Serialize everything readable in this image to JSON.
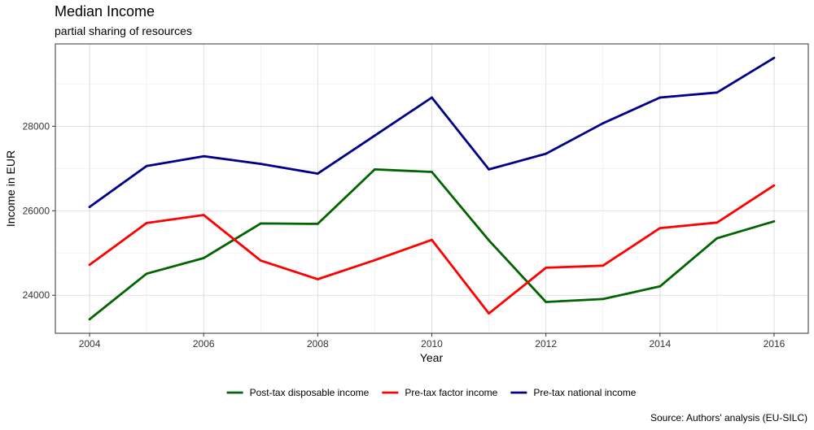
{
  "chart_data": {
    "type": "line",
    "title": "Median Income",
    "subtitle": "partial sharing of resources",
    "xlabel": "Year",
    "ylabel": "Income in EUR",
    "caption": "Source: Authors' analysis (EU-SILC)",
    "xlim": [
      2003.4,
      2016.6
    ],
    "ylim": [
      23100,
      29950
    ],
    "x_ticks": [
      2004,
      2006,
      2008,
      2010,
      2012,
      2014,
      2016
    ],
    "y_ticks": [
      24000,
      26000,
      28000
    ],
    "grid": true,
    "legend_position": "bottom",
    "x": [
      2004,
      2005,
      2006,
      2007,
      2008,
      2009,
      2010,
      2011,
      2012,
      2013,
      2014,
      2015,
      2016
    ],
    "series": [
      {
        "name": "Post-tax disposable income",
        "color": "#006400",
        "values": [
          23430,
          24510,
          24880,
          25700,
          25690,
          26980,
          26920,
          25300,
          23840,
          23910,
          24210,
          25350,
          25750
        ]
      },
      {
        "name": "Pre-tax factor income",
        "color": "#ff0000",
        "values": [
          24720,
          25710,
          25900,
          24820,
          24380,
          24830,
          25310,
          23570,
          24650,
          24700,
          25590,
          25720,
          26600
        ]
      },
      {
        "name": "Pre-tax national income",
        "color": "#00008b",
        "values": [
          26090,
          27060,
          27290,
          27110,
          26880,
          27780,
          28680,
          26980,
          27350,
          28070,
          28680,
          28800,
          29620
        ]
      }
    ]
  }
}
